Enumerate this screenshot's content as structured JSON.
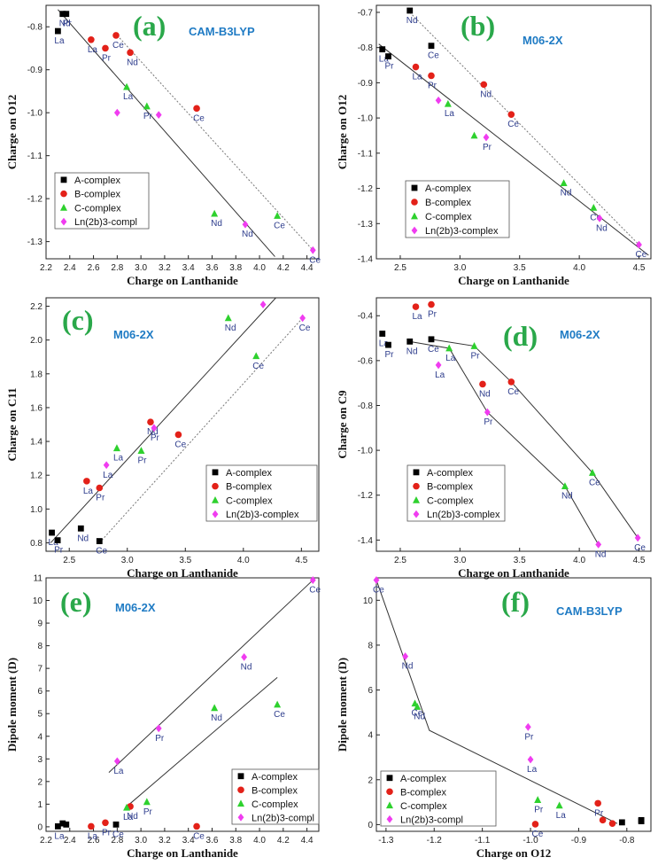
{
  "series_styles": [
    {
      "name": "A-complex",
      "marker": "square",
      "color": "#000000"
    },
    {
      "name": "B-complex",
      "marker": "circle",
      "color": "#e32119"
    },
    {
      "name": "C-complex",
      "marker": "triangle",
      "color": "#2ed12e"
    },
    {
      "name": "Ln(2b)3-complex",
      "marker": "diamond",
      "color": "#f03cf0"
    }
  ],
  "chart_data": [
    {
      "id": "a",
      "type": "scatter",
      "panel_label": "(a)",
      "method": "CAM-B3LYP",
      "xlabel": "Charge on Lanthanide",
      "ylabel": "Charge on O12",
      "xlim": [
        2.2,
        4.5
      ],
      "ylim": [
        -1.34,
        -0.75
      ],
      "xticks": [
        2.2,
        2.4,
        2.6,
        2.8,
        3.0,
        3.2,
        3.4,
        3.6,
        3.8,
        4.0,
        4.2,
        4.4
      ],
      "yticks": [
        -1.3,
        -1.2,
        -1.1,
        -1.0,
        -0.9,
        -0.8
      ],
      "legend_names": [
        "A-complex",
        "B-complex",
        "C-complex",
        "Ln(2b)3-compl"
      ],
      "series": [
        {
          "name": "A-complex",
          "points": [
            [
              2.3,
              -0.81,
              "La"
            ],
            [
              2.34,
              -0.77,
              "Nd"
            ],
            [
              2.37,
              -0.77,
              "Pr"
            ]
          ]
        },
        {
          "name": "B-complex",
          "points": [
            [
              2.58,
              -0.83,
              "La"
            ],
            [
              2.7,
              -0.85,
              "Pr"
            ],
            [
              2.79,
              -0.82,
              "Ce"
            ],
            [
              2.91,
              -0.86,
              "Nd"
            ],
            [
              3.47,
              -0.99,
              "Ce"
            ]
          ]
        },
        {
          "name": "C-complex",
          "points": [
            [
              2.88,
              -0.94,
              "La"
            ],
            [
              3.05,
              -0.985,
              "Pr"
            ],
            [
              3.62,
              -1.235,
              "Nd"
            ],
            [
              4.15,
              -1.24,
              "Ce"
            ]
          ]
        },
        {
          "name": "Ln(2b)3-complex",
          "points": [
            [
              2.8,
              -1.0,
              ""
            ],
            [
              3.15,
              -1.005,
              ""
            ],
            [
              3.88,
              -1.26,
              "Nd"
            ],
            [
              4.45,
              -1.32,
              "Ce"
            ]
          ]
        }
      ],
      "lines": [
        {
          "style": "solid",
          "pts": [
            [
              2.3,
              -0.76
            ],
            [
              4.13,
              -1.335
            ]
          ]
        },
        {
          "style": "dotted",
          "pts": [
            [
              2.8,
              -0.82
            ],
            [
              4.45,
              -1.32
            ]
          ]
        }
      ]
    },
    {
      "id": "b",
      "type": "scatter",
      "panel_label": "(b)",
      "method": "M06-2X",
      "xlabel": "Charge on Lanthanide",
      "ylabel": "Charge on O12",
      "xlim": [
        2.3,
        4.6
      ],
      "ylim": [
        -1.4,
        -0.68
      ],
      "xticks": [
        2.5,
        3.0,
        3.5,
        4.0,
        4.5
      ],
      "yticks": [
        -1.4,
        -1.3,
        -1.2,
        -1.1,
        -1.0,
        -0.9,
        -0.8,
        -0.7
      ],
      "legend_names": [
        "A-complex",
        "B-complex",
        "C-complex",
        "Ln(2b)3-complex"
      ],
      "series": [
        {
          "name": "A-complex",
          "points": [
            [
              2.35,
              -0.805,
              "La"
            ],
            [
              2.4,
              -0.825,
              "Pr"
            ],
            [
              2.58,
              -0.695,
              "Nd"
            ],
            [
              2.76,
              -0.795,
              "Ce"
            ]
          ]
        },
        {
          "name": "B-complex",
          "points": [
            [
              2.63,
              -0.855,
              "La"
            ],
            [
              2.76,
              -0.88,
              "Pr"
            ],
            [
              3.2,
              -0.905,
              "Nd"
            ],
            [
              3.43,
              -0.99,
              "Ce"
            ]
          ]
        },
        {
          "name": "C-complex",
          "points": [
            [
              2.9,
              -0.96,
              "La"
            ],
            [
              3.12,
              -1.05,
              ""
            ],
            [
              3.87,
              -1.185,
              "Nd"
            ],
            [
              4.12,
              -1.255,
              "Ce"
            ]
          ]
        },
        {
          "name": "Ln(2b)3-complex",
          "points": [
            [
              2.82,
              -0.95,
              ""
            ],
            [
              3.22,
              -1.055,
              "Pr"
            ],
            [
              4.17,
              -1.285,
              "Nd"
            ],
            [
              4.5,
              -1.36,
              "Ce"
            ]
          ]
        }
      ],
      "lines": [
        {
          "style": "solid",
          "pts": [
            [
              2.32,
              -0.79
            ],
            [
              4.58,
              -1.39
            ]
          ]
        },
        {
          "style": "dotted",
          "pts": [
            [
              2.58,
              -0.7
            ],
            [
              4.5,
              -1.36
            ]
          ]
        }
      ]
    },
    {
      "id": "c",
      "type": "scatter",
      "panel_label": "(c)",
      "method": "M06-2X",
      "xlabel": "Charge on Lanthanide",
      "ylabel": "Charge on C11",
      "xlim": [
        2.3,
        4.65
      ],
      "ylim": [
        0.75,
        2.25
      ],
      "xticks": [
        2.5,
        3.0,
        3.5,
        4.0,
        4.5
      ],
      "yticks": [
        0.8,
        1.0,
        1.2,
        1.4,
        1.6,
        1.8,
        2.0,
        2.2
      ],
      "legend_names": [
        "A-complex",
        "B-complex",
        "C-complex",
        "Ln(2b)3-complex"
      ],
      "series": [
        {
          "name": "A-complex",
          "points": [
            [
              2.35,
              0.86,
              "La"
            ],
            [
              2.4,
              0.815,
              "Pr"
            ],
            [
              2.6,
              0.885,
              "Nd"
            ],
            [
              2.76,
              0.81,
              "Ce"
            ]
          ]
        },
        {
          "name": "B-complex",
          "points": [
            [
              2.65,
              1.165,
              "La"
            ],
            [
              2.76,
              1.125,
              "Pr"
            ],
            [
              3.2,
              1.515,
              "Nd"
            ],
            [
              3.44,
              1.44,
              "Ce"
            ]
          ]
        },
        {
          "name": "C-complex",
          "points": [
            [
              2.91,
              1.36,
              "La"
            ],
            [
              3.12,
              1.345,
              "Pr"
            ],
            [
              3.87,
              2.13,
              "Nd"
            ],
            [
              4.11,
              1.905,
              "Ce"
            ]
          ]
        },
        {
          "name": "Ln(2b)3-complex",
          "points": [
            [
              2.82,
              1.26,
              "La"
            ],
            [
              3.23,
              1.48,
              "Pr"
            ],
            [
              4.17,
              2.21,
              ""
            ],
            [
              4.51,
              2.13,
              "Ce"
            ]
          ]
        }
      ],
      "lines": [
        {
          "style": "solid",
          "pts": [
            [
              2.34,
              0.8
            ],
            [
              4.28,
              2.25
            ]
          ]
        },
        {
          "style": "dotted",
          "pts": [
            [
              2.76,
              0.8
            ],
            [
              4.51,
              2.13
            ]
          ]
        }
      ]
    },
    {
      "id": "d",
      "type": "scatter",
      "panel_label": "(d)",
      "method": "M06-2X",
      "xlabel": "Charge on Lanthanide",
      "ylabel": "Charge on C9",
      "xlim": [
        2.3,
        4.6
      ],
      "ylim": [
        -1.45,
        -0.32
      ],
      "xticks": [
        2.5,
        3.0,
        3.5,
        4.0,
        4.5
      ],
      "yticks": [
        -1.4,
        -1.2,
        -1.0,
        -0.8,
        -0.6,
        -0.4
      ],
      "legend_names": [
        "A-complex",
        "B-complex",
        "C-complex",
        "Ln(2b)3-complex"
      ],
      "series": [
        {
          "name": "A-complex",
          "points": [
            [
              2.35,
              -0.48,
              "La"
            ],
            [
              2.4,
              -0.53,
              "Pr"
            ],
            [
              2.58,
              -0.515,
              "Nd"
            ],
            [
              2.76,
              -0.505,
              "Ce"
            ]
          ]
        },
        {
          "name": "B-complex",
          "points": [
            [
              2.63,
              -0.36,
              "La"
            ],
            [
              2.76,
              -0.35,
              "Pr"
            ],
            [
              3.19,
              -0.705,
              "Nd"
            ],
            [
              3.43,
              -0.695,
              "Ce"
            ]
          ]
        },
        {
          "name": "C-complex",
          "points": [
            [
              2.91,
              -0.545,
              "La"
            ],
            [
              3.12,
              -0.535,
              "Pr"
            ],
            [
              3.88,
              -1.16,
              "Nd"
            ],
            [
              4.11,
              -1.1,
              "Ce"
            ]
          ]
        },
        {
          "name": "Ln(2b)3-complex",
          "points": [
            [
              2.82,
              -0.62,
              "La"
            ],
            [
              3.23,
              -0.83,
              "Pr"
            ],
            [
              4.16,
              -1.42,
              "Nd"
            ],
            [
              4.49,
              -1.39,
              "Ce"
            ]
          ]
        }
      ],
      "lines": [
        {
          "style": "solid",
          "pts": [
            [
              2.58,
              -0.515
            ],
            [
              2.91,
              -0.545
            ],
            [
              3.23,
              -0.83
            ],
            [
              3.88,
              -1.16
            ],
            [
              4.16,
              -1.42
            ]
          ]
        },
        {
          "style": "solid",
          "pts": [
            [
              2.76,
              -0.505
            ],
            [
              3.12,
              -0.535
            ],
            [
              3.43,
              -0.695
            ],
            [
              4.11,
              -1.1
            ],
            [
              4.49,
              -1.39
            ]
          ]
        }
      ]
    },
    {
      "id": "e",
      "type": "scatter",
      "panel_label": "(e)",
      "method": "M06-2X",
      "xlabel": "Charge on Lanthanide",
      "ylabel": "Dipole moment (D)",
      "xlim": [
        2.2,
        4.5
      ],
      "ylim": [
        -0.2,
        11
      ],
      "xticks": [
        2.2,
        2.4,
        2.6,
        2.8,
        3.0,
        3.2,
        3.4,
        3.6,
        3.8,
        4.0,
        4.2,
        4.4
      ],
      "yticks": [
        0,
        1,
        2,
        3,
        4,
        5,
        6,
        7,
        8,
        9,
        10,
        11
      ],
      "legend_names": [
        "A-complex",
        "B-complex",
        "C-complex",
        "Ln(2b)3-compl"
      ],
      "series": [
        {
          "name": "A-complex",
          "points": [
            [
              2.3,
              0.02,
              "La"
            ],
            [
              2.34,
              0.15,
              ""
            ],
            [
              2.37,
              0.1,
              ""
            ],
            [
              2.79,
              0.1,
              "Ce"
            ]
          ]
        },
        {
          "name": "B-complex",
          "points": [
            [
              2.58,
              0.02,
              "La"
            ],
            [
              2.7,
              0.18,
              "Pr"
            ],
            [
              2.91,
              0.9,
              "Nd"
            ],
            [
              3.47,
              0.02,
              "Ce"
            ]
          ]
        },
        {
          "name": "C-complex",
          "points": [
            [
              2.88,
              0.85,
              "La"
            ],
            [
              3.05,
              1.1,
              "Pr"
            ],
            [
              3.62,
              5.25,
              "Nd"
            ],
            [
              4.15,
              5.4,
              "Ce"
            ]
          ]
        },
        {
          "name": "Ln(2b)3-complex",
          "points": [
            [
              2.8,
              2.9,
              "La"
            ],
            [
              3.15,
              4.35,
              "Pr"
            ],
            [
              3.87,
              7.5,
              "Nd"
            ],
            [
              4.45,
              10.9,
              "Ce"
            ]
          ]
        }
      ],
      "lines": [
        {
          "style": "solid",
          "pts": [
            [
              2.73,
              2.4
            ],
            [
              4.45,
              10.9
            ]
          ]
        },
        {
          "style": "solid",
          "pts": [
            [
              2.87,
              0.85
            ],
            [
              4.15,
              6.6
            ]
          ]
        }
      ]
    },
    {
      "id": "f",
      "type": "scatter",
      "panel_label": "(f)",
      "method": "CAM-B3LYP",
      "xlabel": "Charge on O12",
      "ylabel": "Dipole moment (D)",
      "xlim": [
        -1.32,
        -0.75
      ],
      "ylim": [
        -0.3,
        11
      ],
      "xticks": [
        -1.3,
        -1.2,
        -1.1,
        -1.0,
        -0.9,
        -0.8
      ],
      "yticks": [
        0,
        2,
        4,
        6,
        8,
        10
      ],
      "legend_names": [
        "A-complex",
        "B-complex",
        "C-complex",
        "Ln(2b)3-compl"
      ],
      "series": [
        {
          "name": "A-complex",
          "points": [
            [
              -0.81,
              0.1,
              ""
            ],
            [
              -0.77,
              0.2,
              ""
            ],
            [
              -0.77,
              0.15,
              ""
            ]
          ]
        },
        {
          "name": "B-complex",
          "points": [
            [
              -0.83,
              0.05,
              ""
            ],
            [
              -0.85,
              0.2,
              ""
            ],
            [
              -0.86,
              0.95,
              "Pr"
            ],
            [
              -0.99,
              0.02,
              "Ce"
            ]
          ]
        },
        {
          "name": "C-complex",
          "points": [
            [
              -0.94,
              0.85,
              "La"
            ],
            [
              -0.985,
              1.1,
              "Pr"
            ],
            [
              -1.235,
              5.25,
              "Nd"
            ],
            [
              -1.24,
              5.4,
              "Ce"
            ]
          ]
        },
        {
          "name": "Ln(2b)3-complex",
          "points": [
            [
              -1.0,
              2.9,
              "La"
            ],
            [
              -1.005,
              4.35,
              "Pr"
            ],
            [
              -1.26,
              7.5,
              "Nd"
            ],
            [
              -1.32,
              10.9,
              "Ce"
            ]
          ]
        }
      ],
      "lines": [
        {
          "style": "solid",
          "pts": [
            [
              -1.32,
              10.9
            ],
            [
              -1.21,
              4.2
            ],
            [
              -0.82,
              0.05
            ]
          ]
        }
      ]
    }
  ]
}
